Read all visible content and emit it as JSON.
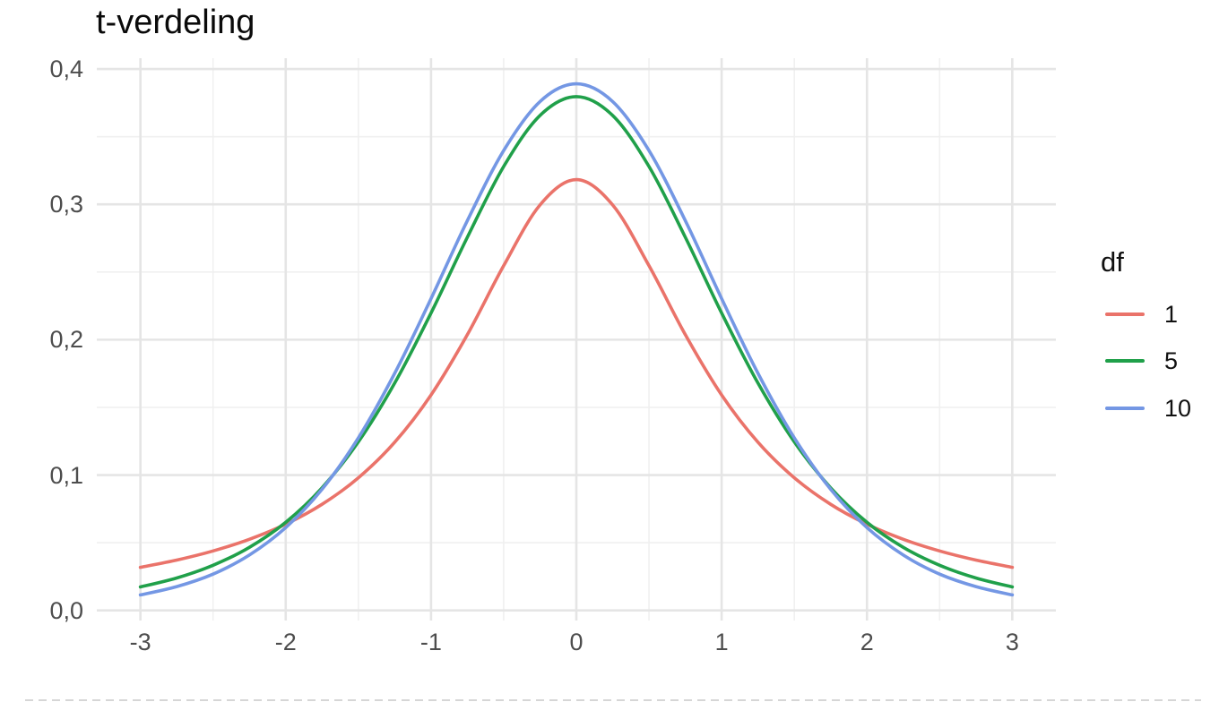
{
  "chart": {
    "title": "t-verdeling",
    "legend": {
      "title": "df",
      "entries": [
        {
          "label": "1",
          "color": "#EA736A"
        },
        {
          "label": "5",
          "color": "#20A04A"
        },
        {
          "label": "10",
          "color": "#7497E4"
        }
      ]
    },
    "x_axis": {
      "ticks": [
        {
          "value": -3,
          "label": "-3"
        },
        {
          "value": -2,
          "label": "-2"
        },
        {
          "value": -1,
          "label": "-1"
        },
        {
          "value": 0,
          "label": "0"
        },
        {
          "value": 1,
          "label": "1"
        },
        {
          "value": 2,
          "label": "2"
        },
        {
          "value": 3,
          "label": "3"
        }
      ]
    },
    "y_axis": {
      "ticks": [
        {
          "value": 0.0,
          "label": "0,0"
        },
        {
          "value": 0.1,
          "label": "0,1"
        },
        {
          "value": 0.2,
          "label": "0,2"
        },
        {
          "value": 0.3,
          "label": "0,3"
        },
        {
          "value": 0.4,
          "label": "0,4"
        }
      ]
    },
    "colors": {
      "grid_major": "#E5E5E5",
      "grid_minor": "#F0F0F0",
      "tick_text": "#4D4D4D",
      "title_text": "#0A0A0A"
    }
  },
  "chart_data": {
    "type": "line",
    "title": "t-verdeling",
    "xlabel": "",
    "ylabel": "",
    "legend_title": "df",
    "legend_position": "right",
    "grid": "major+minor",
    "decimal_separator": ",",
    "xlim": [
      -3.3,
      3.3
    ],
    "ylim": [
      -0.0075,
      0.408
    ],
    "x_ticks": [
      -3,
      -2,
      -1,
      0,
      1,
      2,
      3
    ],
    "y_ticks": [
      0.0,
      0.1,
      0.2,
      0.3,
      0.4
    ],
    "x": [
      -3,
      -2.75,
      -2.5,
      -2.25,
      -2,
      -1.75,
      -1.5,
      -1.25,
      -1,
      -0.75,
      -0.5,
      -0.25,
      0,
      0.25,
      0.5,
      0.75,
      1,
      1.25,
      1.5,
      1.75,
      2,
      2.25,
      2.5,
      2.75,
      3
    ],
    "series": [
      {
        "name": "1",
        "color": "#EA736A",
        "values": [
          0.03183,
          0.03718,
          0.04391,
          0.05251,
          0.06366,
          0.07835,
          0.09794,
          0.12422,
          0.15915,
          0.20372,
          0.25465,
          0.29958,
          0.31831,
          0.29958,
          0.25465,
          0.20372,
          0.15915,
          0.12422,
          0.09794,
          0.07835,
          0.06366,
          0.05251,
          0.04391,
          0.03718,
          0.03183
        ]
      },
      {
        "name": "5",
        "color": "#20A04A",
        "values": [
          0.01729,
          0.02393,
          0.03333,
          0.04657,
          0.06509,
          0.09054,
          0.12452,
          0.16789,
          0.21967,
          0.2757,
          0.32792,
          0.36572,
          0.37961,
          0.36572,
          0.32792,
          0.2757,
          0.21967,
          0.16789,
          0.12452,
          0.09054,
          0.06509,
          0.04657,
          0.03333,
          0.02393,
          0.01729
        ]
      },
      {
        "name": "10",
        "color": "#7497E4",
        "values": [
          0.01142,
          0.01756,
          0.02679,
          0.04089,
          0.06116,
          0.08949,
          0.12743,
          0.1751,
          0.23037,
          0.28797,
          0.3397,
          0.376,
          0.38911,
          0.376,
          0.3397,
          0.28797,
          0.23037,
          0.1751,
          0.12743,
          0.08949,
          0.06116,
          0.04089,
          0.02679,
          0.01756,
          0.01142
        ]
      }
    ]
  }
}
